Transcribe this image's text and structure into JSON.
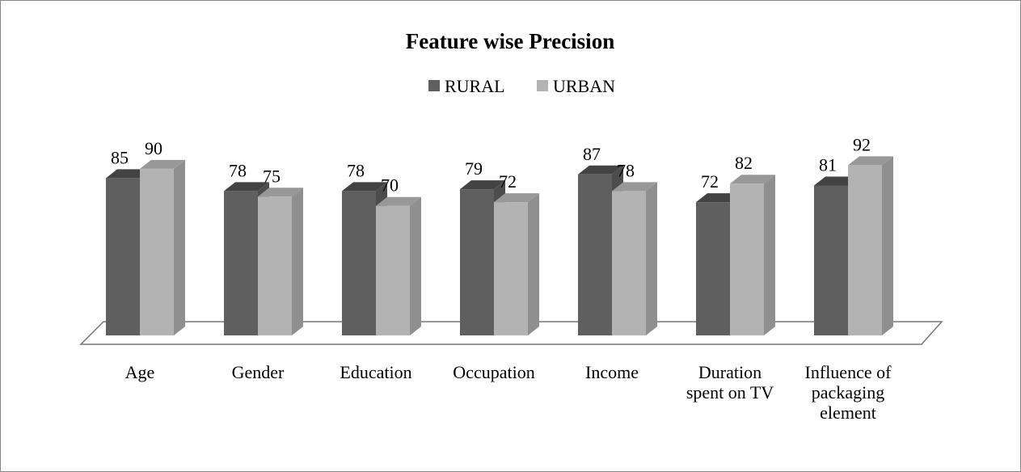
{
  "chart_data": {
    "type": "bar3d",
    "title": "Feature wise Precision",
    "categories": [
      "Age",
      "Gender",
      "Education",
      "Occupation",
      "Income",
      "Duration spent on TV",
      "Influence of packaging element"
    ],
    "series": [
      {
        "name": "RURAL",
        "color": "#5f5f5f",
        "values": [
          85,
          78,
          78,
          79,
          87,
          72,
          81
        ]
      },
      {
        "name": "URBAN",
        "color": "#b3b3b3",
        "values": [
          90,
          75,
          70,
          72,
          78,
          82,
          92
        ]
      }
    ],
    "legend": "top"
  }
}
